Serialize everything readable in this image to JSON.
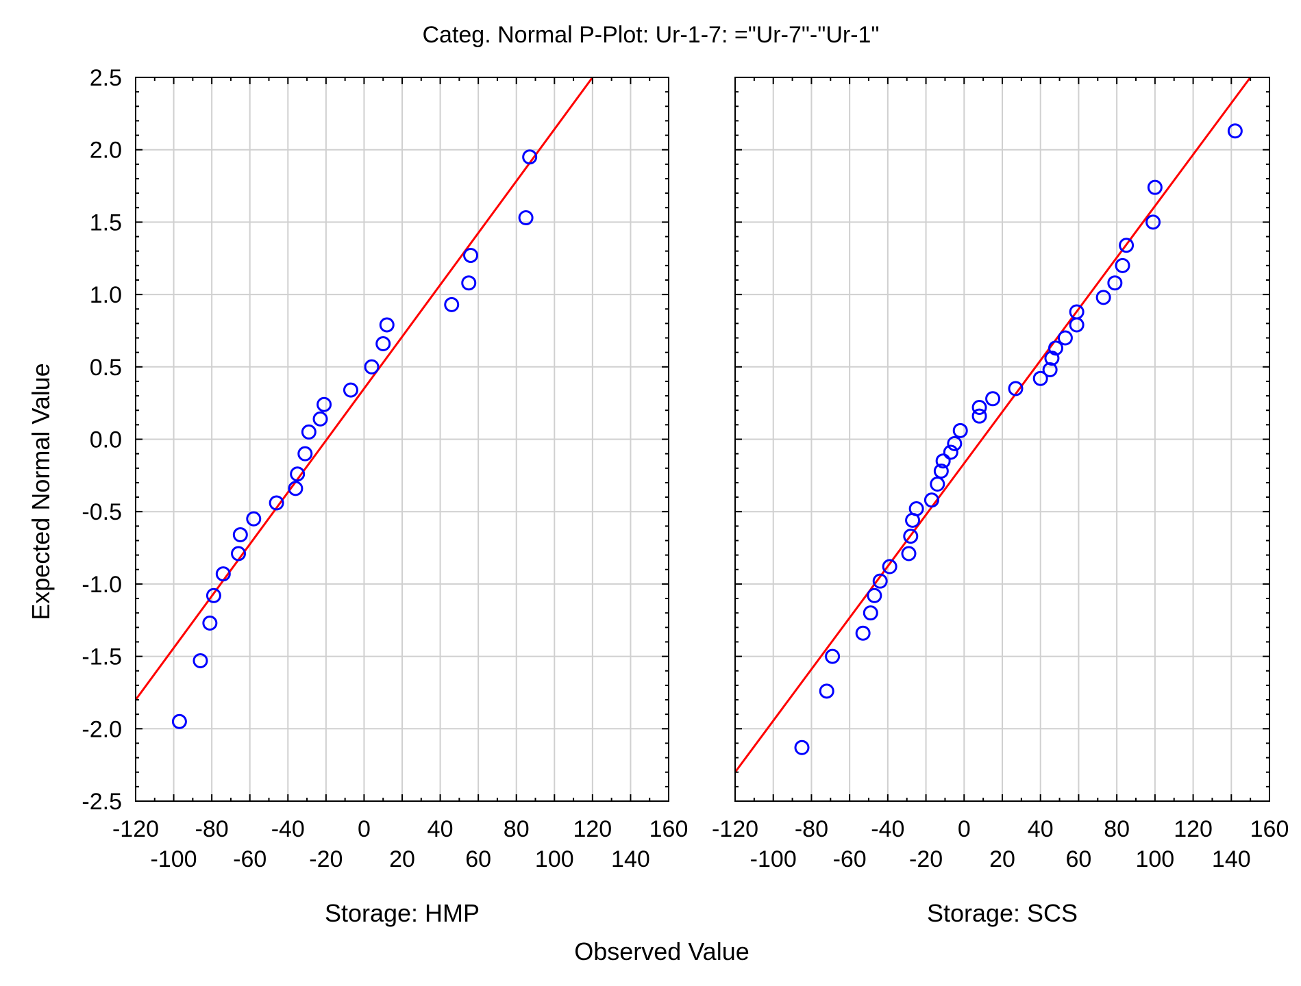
{
  "colors": {
    "points": "#0000ff",
    "fit_line": "#ff0000",
    "grid": "#d0d0d0",
    "frame": "#000000"
  },
  "chart_data": {
    "type": "scatter",
    "title": "Categ. Normal P-Plot: Ur-1-7: =\"Ur-7\"-\"Ur-1\"",
    "xlabel": "Observed Value",
    "ylabel": "Expected Normal Value",
    "xlim": [
      -120,
      160
    ],
    "ylim": [
      -2.5,
      2.5
    ],
    "x_ticks_upper": [
      "-120",
      "-80",
      "-40",
      "0",
      "40",
      "80",
      "120",
      "160"
    ],
    "x_ticks_lower": [
      "-100",
      "-60",
      "-20",
      "20",
      "60",
      "100",
      "140"
    ],
    "y_ticks": [
      "2.5",
      "2.0",
      "1.5",
      "1.0",
      "0.5",
      "0.0",
      "-0.5",
      "-1.0",
      "-1.5",
      "-2.0",
      "-2.5"
    ],
    "grid": true,
    "panels": [
      {
        "label": "Storage: HMP",
        "fit_line": {
          "x": [
            -120,
            120
          ],
          "y": [
            -1.8,
            2.5
          ]
        },
        "points": [
          {
            "x": -97,
            "y": -1.95
          },
          {
            "x": -86,
            "y": -1.53
          },
          {
            "x": -81,
            "y": -1.27
          },
          {
            "x": -79,
            "y": -1.08
          },
          {
            "x": -74,
            "y": -0.93
          },
          {
            "x": -66,
            "y": -0.79
          },
          {
            "x": -65,
            "y": -0.66
          },
          {
            "x": -58,
            "y": -0.55
          },
          {
            "x": -46,
            "y": -0.44
          },
          {
            "x": -36,
            "y": -0.34
          },
          {
            "x": -35,
            "y": -0.24
          },
          {
            "x": -31,
            "y": -0.1
          },
          {
            "x": -29,
            "y": 0.05
          },
          {
            "x": -23,
            "y": 0.14
          },
          {
            "x": -21,
            "y": 0.24
          },
          {
            "x": -7,
            "y": 0.34
          },
          {
            "x": 4,
            "y": 0.5
          },
          {
            "x": 10,
            "y": 0.66
          },
          {
            "x": 12,
            "y": 0.79
          },
          {
            "x": 46,
            "y": 0.93
          },
          {
            "x": 55,
            "y": 1.08
          },
          {
            "x": 56,
            "y": 1.27
          },
          {
            "x": 85,
            "y": 1.53
          },
          {
            "x": 87,
            "y": 1.95
          }
        ]
      },
      {
        "label": "Storage: SCS",
        "fit_line": {
          "x": [
            -120,
            150
          ],
          "y": [
            -2.3,
            2.5
          ]
        },
        "points": [
          {
            "x": -85,
            "y": -2.13
          },
          {
            "x": -72,
            "y": -1.74
          },
          {
            "x": -69,
            "y": -1.5
          },
          {
            "x": -53,
            "y": -1.34
          },
          {
            "x": -49,
            "y": -1.2
          },
          {
            "x": -47,
            "y": -1.08
          },
          {
            "x": -44,
            "y": -0.98
          },
          {
            "x": -39,
            "y": -0.88
          },
          {
            "x": -29,
            "y": -0.79
          },
          {
            "x": -28,
            "y": -0.67
          },
          {
            "x": -27,
            "y": -0.56
          },
          {
            "x": -25,
            "y": -0.48
          },
          {
            "x": -17,
            "y": -0.42
          },
          {
            "x": -14,
            "y": -0.31
          },
          {
            "x": -12,
            "y": -0.22
          },
          {
            "x": -11,
            "y": -0.15
          },
          {
            "x": -7,
            "y": -0.09
          },
          {
            "x": -5,
            "y": -0.03
          },
          {
            "x": -2,
            "y": 0.06
          },
          {
            "x": 8,
            "y": 0.16
          },
          {
            "x": 8,
            "y": 0.22
          },
          {
            "x": 15,
            "y": 0.28
          },
          {
            "x": 27,
            "y": 0.35
          },
          {
            "x": 40,
            "y": 0.42
          },
          {
            "x": 45,
            "y": 0.48
          },
          {
            "x": 46,
            "y": 0.56
          },
          {
            "x": 48,
            "y": 0.63
          },
          {
            "x": 53,
            "y": 0.7
          },
          {
            "x": 59,
            "y": 0.79
          },
          {
            "x": 59,
            "y": 0.88
          },
          {
            "x": 73,
            "y": 0.98
          },
          {
            "x": 79,
            "y": 1.08
          },
          {
            "x": 83,
            "y": 1.2
          },
          {
            "x": 85,
            "y": 1.34
          },
          {
            "x": 99,
            "y": 1.5
          },
          {
            "x": 100,
            "y": 1.74
          },
          {
            "x": 142,
            "y": 2.13
          }
        ]
      }
    ]
  }
}
